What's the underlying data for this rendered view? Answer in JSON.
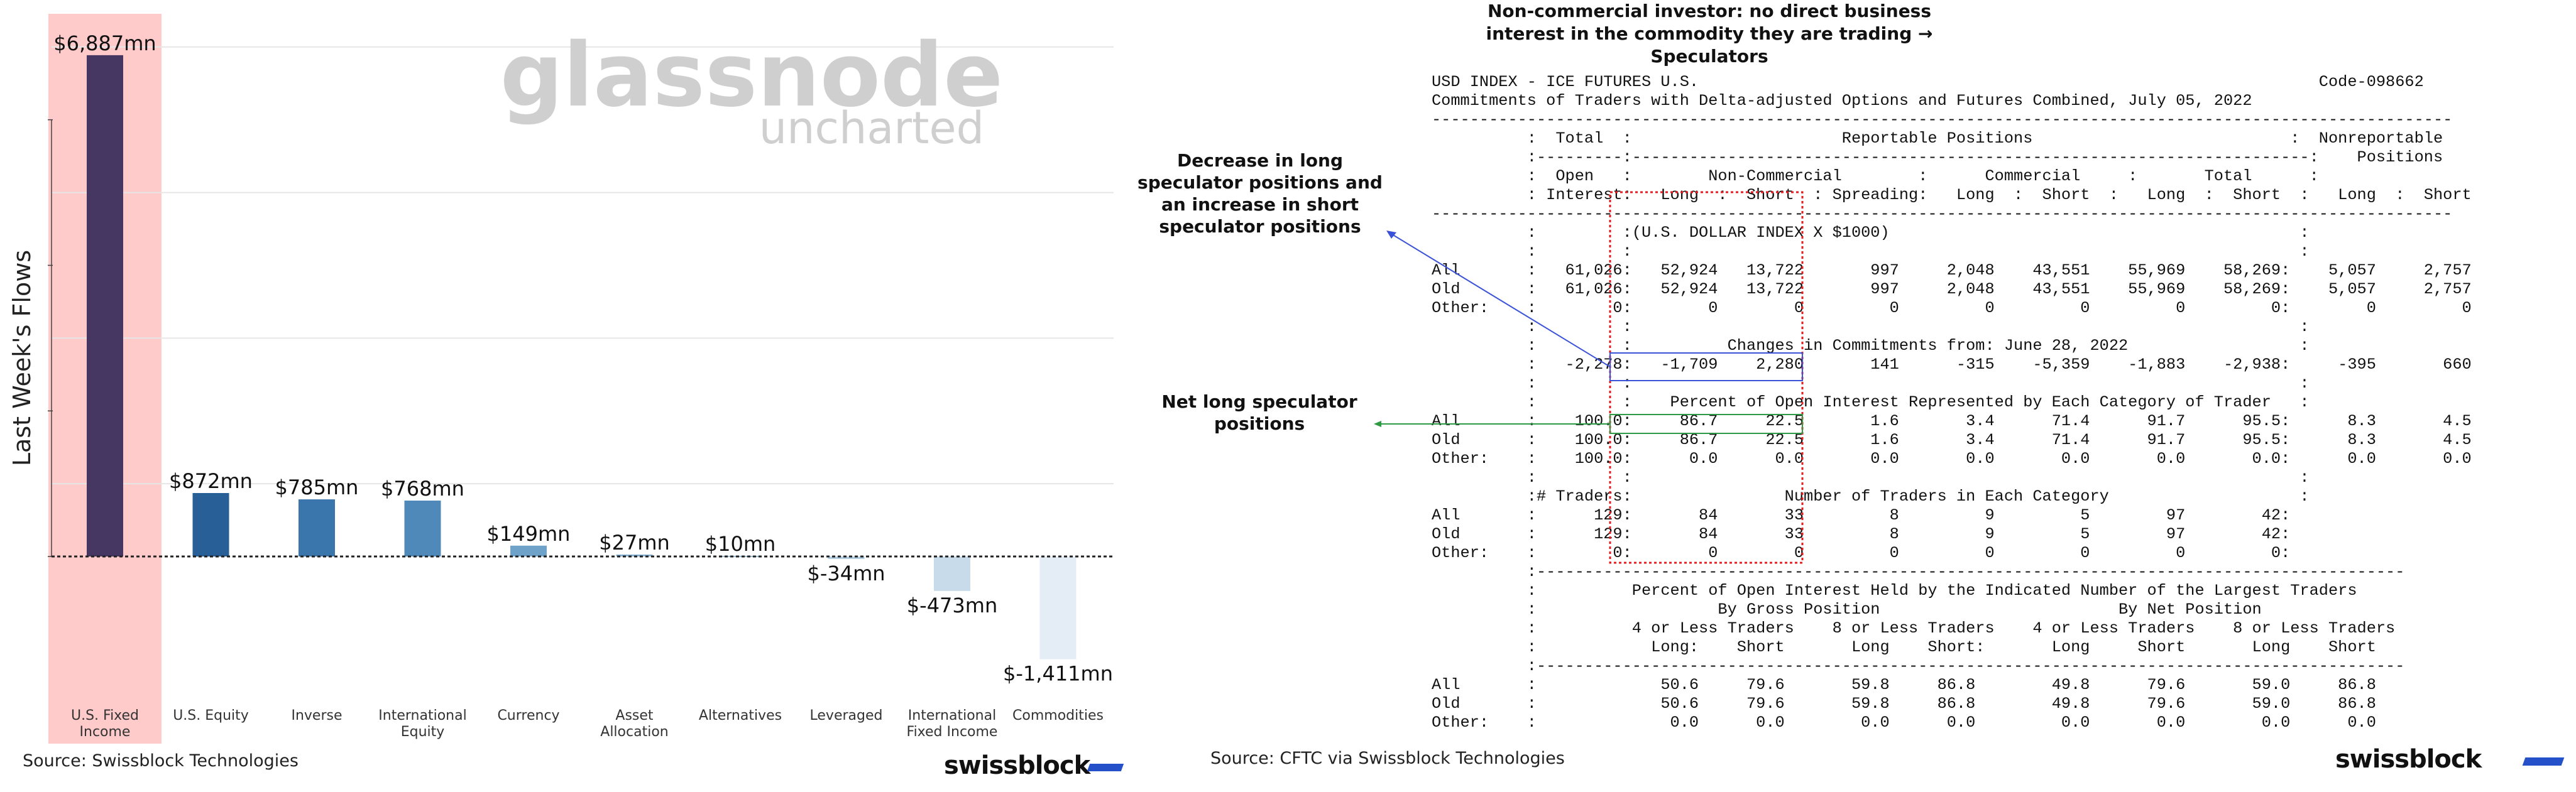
{
  "chart_data": {
    "type": "bar",
    "categories": [
      "U.S. Fixed Income",
      "U.S. Equity",
      "Inverse",
      "International Equity",
      "Currency",
      "Asset Allocation",
      "Alternatives",
      "Leveraged",
      "International Fixed Income",
      "Commodities"
    ],
    "category_label_lines": [
      [
        "U.S. Fixed",
        "Income"
      ],
      [
        "U.S. Equity"
      ],
      [
        "Inverse"
      ],
      [
        "International",
        "Equity"
      ],
      [
        "Currency"
      ],
      [
        "Asset",
        "Allocation"
      ],
      [
        "Alternatives"
      ],
      [
        "Leveraged"
      ],
      [
        "International",
        "Fixed Income"
      ],
      [
        "Commodities"
      ]
    ],
    "values": [
      6887,
      872,
      785,
      768,
      149,
      27,
      10,
      -34,
      -473,
      -1411
    ],
    "data_labels": [
      "$6,887mn",
      "$872mn",
      "$785mn",
      "$768mn",
      "$149mn",
      "$27mn",
      "$10mn",
      "$-34mn",
      "$-473mn",
      "$-1,411mn"
    ],
    "bar_colors": [
      "#453761",
      "#285f96",
      "#3a75ac",
      "#4f89b9",
      "#6ea2c9",
      "#86b1d2",
      "#9cc0da",
      "#b1cde2",
      "#c7dbeb",
      "#e4edf6"
    ],
    "highlight_color": "#ffcaca",
    "highlight_index": 0,
    "ylabel": "Last Week's Flows",
    "ylim": [
      -2450,
      7300
    ],
    "grid": true,
    "watermark": {
      "main": "glassnode",
      "sub": "uncharted"
    },
    "source": "Source: Swissblock Technologies",
    "brand": "swissblock"
  },
  "report": {
    "title": "Non-commercial investor: no direct business interest in the commodity they are trading → Speculators",
    "lines": [
      "USD INDEX - ICE FUTURES U.S.                                                                 Code-098662",
      "Commitments of Traders with Delta-adjusted Options and Futures Combined, July 05, 2022",
      "-----------------------------------------------------------------------------------------------------------",
      "          :  Total  :                      Reportable Positions                           :  Nonreportable",
      "          :---------:-----------------------------------------------------------------------:    Positions",
      "          :  Open   :        Non-Commercial        :      Commercial     :       Total      :",
      "          : Interest:   Long  :  Short  : Spreading:   Long  :  Short  :   Long  :  Short  :   Long  :  Short",
      "-----------------------------------------------------------------------------------------------------------",
      "          :         :(U.S. DOLLAR INDEX X $1000)                                           :",
      "          :         :                                                                      :",
      "All       :   61,026:   52,924   13,722       997     2,048    43,551    55,969    58,269:    5,057     2,757",
      "Old       :   61,026:   52,924   13,722       997     2,048    43,551    55,969    58,269:    5,057     2,757",
      "Other:    :        0:        0        0         0         0         0         0         0:        0         0",
      "          :         :                                                                      :",
      "          :         :          Changes in Commitments from: June 28, 2022                  :",
      "          :   -2,278:   -1,709    2,280       141      -315    -5,359    -1,883    -2,938:     -395       660",
      "          :         :                                                                      :",
      "          :         :    Percent of Open Interest Represented by Each Category of Trader   :",
      "All       :    100.0:     86.7     22.5       1.6       3.4      71.4      91.7      95.5:      8.3       4.5",
      "Old       :    100.0:     86.7     22.5       1.6       3.4      71.4      91.7      95.5:      8.3       4.5",
      "Other:    :    100.0:      0.0      0.0       0.0       0.0       0.0       0.0       0.0:      0.0       0.0",
      "          :         :                                                                      :",
      "          :# Traders:                Number of Traders in Each Category                    :",
      "All       :      129:       84       33         8         9         5        97        42:",
      "Old       :      129:       84       33         8         9         5        97        42:",
      "Other:    :        0:        0        0         0         0         0         0         0:",
      "          :-------------------------------------------------------------------------------------------",
      "          :          Percent of Open Interest Held by the Indicated Number of the Largest Traders",
      "          :                   By Gross Position                         By Net Position",
      "          :          4 or Less Traders    8 or Less Traders    4 or Less Traders    8 or Less Traders",
      "          :            Long:    Short       Long    Short:       Long     Short       Long    Short",
      "          :-------------------------------------------------------------------------------------------",
      "All       :             50.6     79.6       59.8     86.8        49.8      79.6       59.0     86.8",
      "Old       :             50.6     79.6       59.8     86.8        49.8      79.6       59.0     86.8",
      "Other:    :              0.0      0.0        0.0      0.0         0.0       0.0        0.0      0.0"
    ],
    "annotation_decrease": "Decrease in long speculator positions and an increase in short speculator positions",
    "annotation_net_long": "Net long speculator positions",
    "box_color": "#e02020",
    "blue_color": "#3a52d8",
    "green_color": "#2e9a44",
    "source": "Source: CFTC via Swissblock Technologies",
    "brand": "swissblock"
  }
}
